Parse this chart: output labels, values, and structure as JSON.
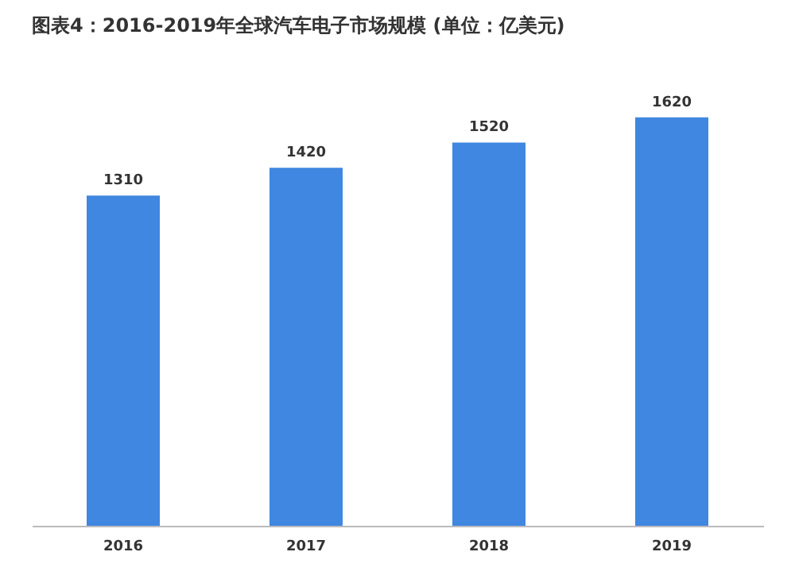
{
  "chart_data": {
    "type": "bar",
    "title": "图表4：2016-2019年全球汽车电子市场规模 (单位：亿美元)",
    "categories": [
      "2016",
      "2017",
      "2018",
      "2019"
    ],
    "values": [
      1310,
      1420,
      1520,
      1620
    ],
    "color": "#3f87e0",
    "data_labels": true,
    "grid": false
  }
}
